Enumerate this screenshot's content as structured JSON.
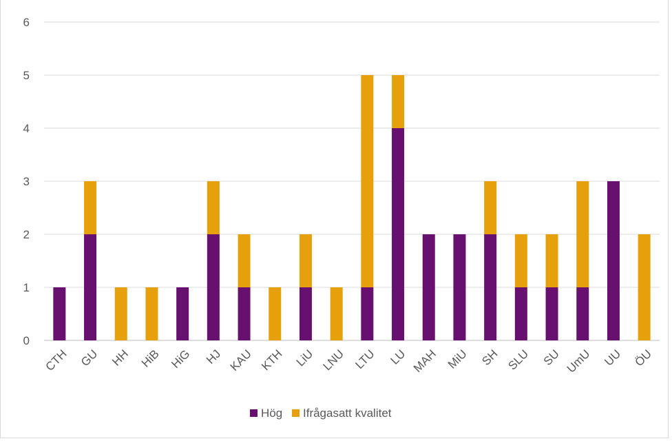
{
  "chart_data": {
    "type": "bar",
    "stacked": true,
    "title": "",
    "xlabel": "",
    "ylabel": "",
    "ylim": [
      0,
      6
    ],
    "yticks": [
      0,
      1,
      2,
      3,
      4,
      5,
      6
    ],
    "grid": true,
    "legend_position": "bottom",
    "categories": [
      "CTH",
      "GU",
      "HH",
      "HiB",
      "HiG",
      "HJ",
      "KAU",
      "KTH",
      "LiU",
      "LNU",
      "LTU",
      "LU",
      "MAH",
      "MiU",
      "SH",
      "SLU",
      "SU",
      "UmU",
      "UU",
      "ÖU"
    ],
    "series": [
      {
        "name": "Hög",
        "color": "#68106f",
        "values": [
          1,
          2,
          0,
          0,
          1,
          2,
          1,
          0,
          1,
          0,
          1,
          4,
          2,
          2,
          2,
          1,
          1,
          1,
          3,
          0
        ]
      },
      {
        "name": "Ifrågasatt kvalitet",
        "color": "#e6a00b",
        "values": [
          0,
          1,
          1,
          1,
          0,
          1,
          1,
          1,
          1,
          1,
          4,
          1,
          0,
          0,
          1,
          1,
          1,
          2,
          0,
          2
        ]
      }
    ]
  }
}
